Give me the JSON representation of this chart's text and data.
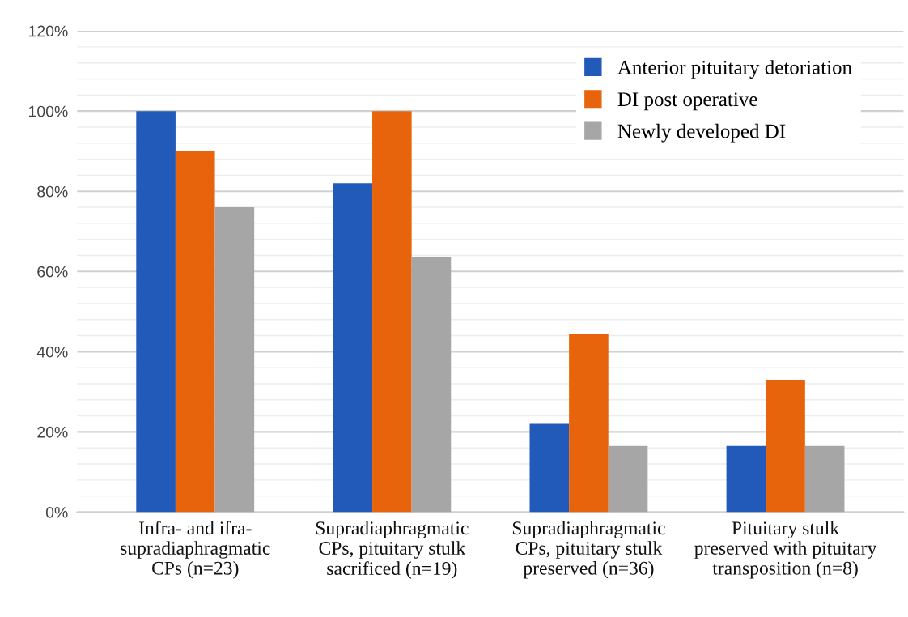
{
  "chart_data": {
    "type": "bar",
    "categories": [
      "Infra- and ifra-\nsupradiaphragmatic\nCPs (n=23)",
      "Supradiaphragmatic\nCPs, pituitary stulk\nsacrificed (n=19)",
      "Supradiaphragmatic\nCPs, pituitary stulk\npreserved (n=36)",
      "Pituitary stulk\npreserved with pituitary\ntransposition (n=8)"
    ],
    "series": [
      {
        "name": "Anterior pituitary detoriation",
        "color": "#215ab9",
        "values": [
          100,
          82,
          22,
          16.5
        ]
      },
      {
        "name": "DI post operative",
        "color": "#e8640c",
        "values": [
          90,
          100,
          44.4,
          33
        ]
      },
      {
        "name": "Newly developed DI",
        "color": "#a6a6a6",
        "values": [
          76,
          63.5,
          16.5,
          16.5
        ]
      }
    ],
    "ylim": [
      0,
      120
    ],
    "yticks": [
      {
        "value": 0,
        "label": "0%"
      },
      {
        "value": 4,
        "label": null
      },
      {
        "value": 8,
        "label": null
      },
      {
        "value": 12,
        "label": null
      },
      {
        "value": 16,
        "label": null
      },
      {
        "value": 20,
        "label": "20%"
      },
      {
        "value": 24,
        "label": null
      },
      {
        "value": 28,
        "label": null
      },
      {
        "value": 32,
        "label": null
      },
      {
        "value": 36,
        "label": null
      },
      {
        "value": 40,
        "label": "40%"
      },
      {
        "value": 44,
        "label": null
      },
      {
        "value": 48,
        "label": null
      },
      {
        "value": 52,
        "label": null
      },
      {
        "value": 56,
        "label": null
      },
      {
        "value": 60,
        "label": "60%"
      },
      {
        "value": 64,
        "label": null
      },
      {
        "value": 68,
        "label": null
      },
      {
        "value": 72,
        "label": null
      },
      {
        "value": 76,
        "label": null
      },
      {
        "value": 80,
        "label": "80%"
      },
      {
        "value": 84,
        "label": null
      },
      {
        "value": 88,
        "label": null
      },
      {
        "value": 92,
        "label": null
      },
      {
        "value": 96,
        "label": null
      },
      {
        "value": 100,
        "label": "100%"
      },
      {
        "value": 104,
        "label": null
      },
      {
        "value": 108,
        "label": null
      },
      {
        "value": 112,
        "label": null
      },
      {
        "value": 116,
        "label": null
      },
      {
        "value": 120,
        "label": "120%"
      }
    ],
    "grid": "y",
    "legend": "top right"
  }
}
